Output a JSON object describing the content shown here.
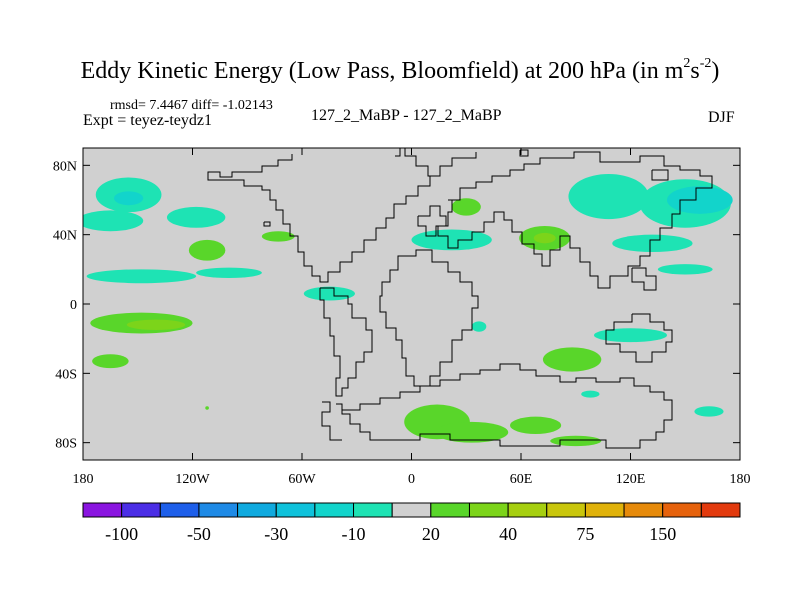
{
  "header": {
    "title_main": "Eddy Kinetic Energy (Low Pass, Bloomfield) at 200 hPa (in m",
    "title_sup1": "2",
    "title_mid": "s",
    "title_sup2": "-2",
    "title_end": ")",
    "stats": "rmsd= 7.4467 diff= -1.02143",
    "expt": "Expt = teyez-teydz1",
    "center_label": "127_2_MaBP - 127_2_MaBP",
    "season": "DJF"
  },
  "chart_data": {
    "type": "contour_map",
    "title": "Eddy Kinetic Energy (Low Pass, Bloomfield) at 200 hPa (in m^2 s^-2)",
    "subtitle": "127_2_MaBP - 127_2_MaBP",
    "season": "DJF",
    "rmsd": 7.4467,
    "diff": -1.02143,
    "x_axis": {
      "range": [
        -180,
        180
      ],
      "ticks": [
        -180,
        -120,
        -60,
        0,
        60,
        120,
        180
      ],
      "tick_labels": [
        "180",
        "120W",
        "60W",
        "0",
        "60E",
        "120E",
        "180"
      ]
    },
    "y_axis": {
      "range": [
        -90,
        90
      ],
      "ticks": [
        80,
        40,
        0,
        -40,
        -80
      ],
      "tick_labels": [
        "80N",
        "40N",
        "0",
        "40S",
        "80S"
      ]
    },
    "colorbar": {
      "boundaries": [
        -150,
        -100,
        -75,
        -50,
        -40,
        -30,
        -20,
        -10,
        10,
        20,
        30,
        40,
        50,
        75,
        100,
        150
      ],
      "labels": [
        "-100",
        "-50",
        "-30",
        "-10",
        "20",
        "40",
        "75",
        "150"
      ],
      "colors": [
        "#8a15e0",
        "#4b2ee6",
        "#1e5fea",
        "#1e8ae6",
        "#10aadf",
        "#0fc2db",
        "#12d4cb",
        "#1ee3b4",
        "#d0d0d0",
        "#59d62a",
        "#7cd41a",
        "#a6cf10",
        "#c9c60c",
        "#e0b20a",
        "#e68a0a",
        "#e6620c",
        "#e23a0e"
      ],
      "label_boundary_index": [
        1,
        3,
        5,
        7,
        9,
        11,
        13,
        15
      ]
    },
    "regions": [
      {
        "lon": -155,
        "lat": 63,
        "rx": 18,
        "ry": 10,
        "bin": 7
      },
      {
        "lon": -155,
        "lat": 61,
        "rx": 8,
        "ry": 4,
        "bin": 6
      },
      {
        "lon": -165,
        "lat": 48,
        "rx": 18,
        "ry": 6,
        "bin": 7
      },
      {
        "lon": -118,
        "lat": 50,
        "rx": 16,
        "ry": 6,
        "bin": 7
      },
      {
        "lon": -148,
        "lat": 16,
        "rx": 30,
        "ry": 4,
        "bin": 7
      },
      {
        "lon": -100,
        "lat": 18,
        "rx": 18,
        "ry": 3,
        "bin": 7
      },
      {
        "lon": -45,
        "lat": 6,
        "rx": 14,
        "ry": 4,
        "bin": 7
      },
      {
        "lon": 108,
        "lat": 62,
        "rx": 22,
        "ry": 13,
        "bin": 7
      },
      {
        "lon": 150,
        "lat": 58,
        "rx": 25,
        "ry": 14,
        "bin": 7
      },
      {
        "lon": 158,
        "lat": 60,
        "rx": 18,
        "ry": 8,
        "bin": 6
      },
      {
        "lon": 132,
        "lat": 35,
        "rx": 22,
        "ry": 5,
        "bin": 7
      },
      {
        "lon": 150,
        "lat": 20,
        "rx": 15,
        "ry": 3,
        "bin": 7
      },
      {
        "lon": 22,
        "lat": 37,
        "rx": 22,
        "ry": 6,
        "bin": 7
      },
      {
        "lon": 120,
        "lat": -18,
        "rx": 20,
        "ry": 4,
        "bin": 7
      },
      {
        "lon": 163,
        "lat": -62,
        "rx": 8,
        "ry": 3,
        "bin": 7
      },
      {
        "lon": 98,
        "lat": -52,
        "rx": 5,
        "ry": 2,
        "bin": 7
      },
      {
        "lon": 37,
        "lat": -13,
        "rx": 4,
        "ry": 3,
        "bin": 7
      },
      {
        "lon": -112,
        "lat": 31,
        "rx": 10,
        "ry": 6,
        "bin": 9
      },
      {
        "lon": -73,
        "lat": 39,
        "rx": 9,
        "ry": 3,
        "bin": 9
      },
      {
        "lon": 30,
        "lat": 56,
        "rx": 8,
        "ry": 5,
        "bin": 9
      },
      {
        "lon": 73,
        "lat": 38,
        "rx": 14,
        "ry": 7,
        "bin": 9
      },
      {
        "lon": 73,
        "lat": 38,
        "rx": 6,
        "ry": 3,
        "bin": 10
      },
      {
        "lon": -148,
        "lat": -11,
        "rx": 28,
        "ry": 6,
        "bin": 9
      },
      {
        "lon": -140,
        "lat": -12,
        "rx": 16,
        "ry": 3,
        "bin": 10
      },
      {
        "lon": -165,
        "lat": -33,
        "rx": 10,
        "ry": 4,
        "bin": 9
      },
      {
        "lon": 88,
        "lat": -32,
        "rx": 16,
        "ry": 7,
        "bin": 9
      },
      {
        "lon": 14,
        "lat": -68,
        "rx": 18,
        "ry": 10,
        "bin": 9
      },
      {
        "lon": 33,
        "lat": -74,
        "rx": 20,
        "ry": 6,
        "bin": 9
      },
      {
        "lon": 68,
        "lat": -70,
        "rx": 14,
        "ry": 5,
        "bin": 9
      },
      {
        "lon": 90,
        "lat": -79,
        "rx": 14,
        "ry": 3,
        "bin": 9
      },
      {
        "lon": -112,
        "lat": -60,
        "rx": 1,
        "ry": 1,
        "bin": 9
      }
    ]
  }
}
